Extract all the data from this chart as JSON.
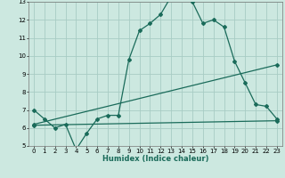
{
  "bg_color": "#cce8e0",
  "grid_color": "#a8ccC4",
  "line_color": "#1a6b5a",
  "xlabel": "Humidex (Indice chaleur)",
  "xlim": [
    -0.5,
    23.5
  ],
  "ylim": [
    5,
    13
  ],
  "yticks": [
    5,
    6,
    7,
    8,
    9,
    10,
    11,
    12,
    13
  ],
  "xticks": [
    0,
    1,
    2,
    3,
    4,
    5,
    6,
    7,
    8,
    9,
    10,
    11,
    12,
    13,
    14,
    15,
    16,
    17,
    18,
    19,
    20,
    21,
    22,
    23
  ],
  "curve1_x": [
    0,
    1,
    2,
    3,
    4,
    5,
    6,
    7,
    8,
    9,
    10,
    11,
    12,
    13,
    14,
    15,
    16,
    17,
    18,
    19,
    20,
    21,
    22,
    23
  ],
  "curve1_y": [
    7.0,
    6.5,
    6.0,
    6.2,
    4.8,
    5.7,
    6.5,
    6.7,
    6.7,
    9.8,
    11.4,
    11.8,
    12.3,
    13.3,
    13.3,
    13.0,
    11.8,
    12.0,
    11.6,
    9.7,
    8.5,
    7.3,
    7.2,
    6.5
  ],
  "curve2_x": [
    0,
    23
  ],
  "curve2_y": [
    6.2,
    9.5
  ],
  "curve3_x": [
    0,
    23
  ],
  "curve3_y": [
    6.15,
    6.4
  ],
  "marker_size": 2.0,
  "line_width": 0.9,
  "tick_fontsize": 5.0,
  "xlabel_fontsize": 6.0
}
